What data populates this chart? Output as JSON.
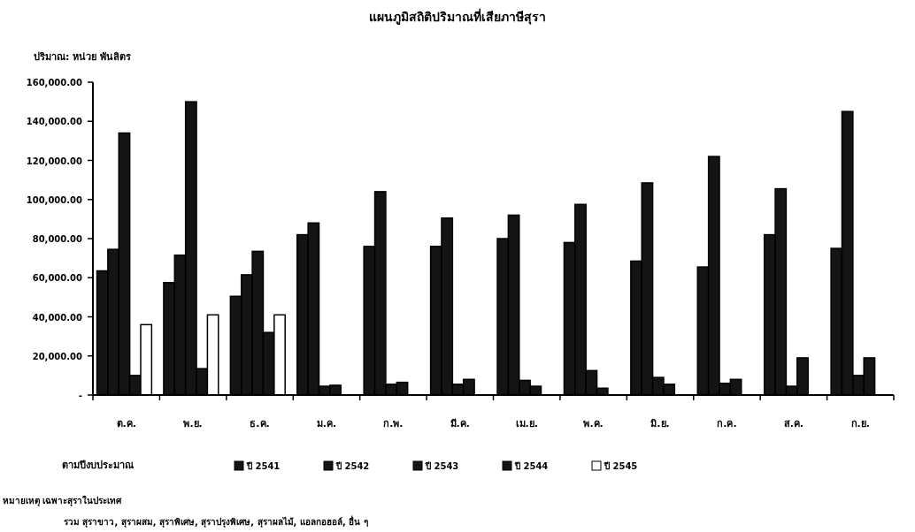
{
  "chart_data": {
    "type": "bar",
    "title": "แผนภูมิสถิติปริมาณที่เสียภาษีสุรา",
    "ylabel": "ปริมาณ: หน่วย พันลิตร",
    "legend_title": "ตามปีงบประมาณ",
    "categories": [
      "ต.ค.",
      "พ.ย.",
      "ธ.ค.",
      "ม.ค.",
      "ก.พ.",
      "มี.ค.",
      "เม.ย.",
      "พ.ค.",
      "มิ.ย.",
      "ก.ค.",
      "ส.ค.",
      "ก.ย."
    ],
    "series": [
      {
        "name": "ปี 2541",
        "color": "#141414",
        "values": [
          63500,
          57500,
          50500,
          82000,
          76000,
          76000,
          80000,
          78000,
          68500,
          65500,
          82000,
          75000
        ]
      },
      {
        "name": "ปี 2542",
        "color": "#141414",
        "values": [
          74500,
          71500,
          61500,
          88000,
          104000,
          90500,
          92000,
          97500,
          108500,
          122000,
          105500,
          145000
        ]
      },
      {
        "name": "ปี 2543",
        "color": "#141414",
        "values": [
          134000,
          150000,
          73500,
          4500,
          5500,
          5500,
          7500,
          12500,
          9000,
          6000,
          4500,
          10000
        ]
      },
      {
        "name": "ปี 2544",
        "color": "#141414",
        "values": [
          10000,
          13500,
          32000,
          5000,
          6500,
          8000,
          4500,
          3500,
          5500,
          8000,
          19000,
          19000
        ]
      },
      {
        "name": "ปี 2545",
        "color": "#ffffff",
        "values": [
          36000,
          41000,
          41000,
          null,
          null,
          null,
          null,
          null,
          null,
          null,
          null,
          null
        ]
      }
    ],
    "ylim": [
      0,
      160000
    ],
    "yticks": [
      {
        "value": 0,
        "label": "-"
      },
      {
        "value": 20000,
        "label": "20,000.00"
      },
      {
        "value": 40000,
        "label": "40,000.00"
      },
      {
        "value": 60000,
        "label": "60,000.00"
      },
      {
        "value": 80000,
        "label": "80,000.00"
      },
      {
        "value": 100000,
        "label": "100,000.00"
      },
      {
        "value": 120000,
        "label": "120,000.00"
      },
      {
        "value": 140000,
        "label": "140,000.00"
      },
      {
        "value": 160000,
        "label": "160,000.00"
      }
    ],
    "grid": false,
    "legend": "bottom",
    "annotations": [
      "หมายเหตุ เฉพาะสุราในประเทศ",
      "รวม สุราขาว, สุราผสม, สุราพิเศษ, สุราปรุงพิเศษ, สุราผลไม้, แอลกอฮอล์, อื่น ๆ"
    ]
  }
}
